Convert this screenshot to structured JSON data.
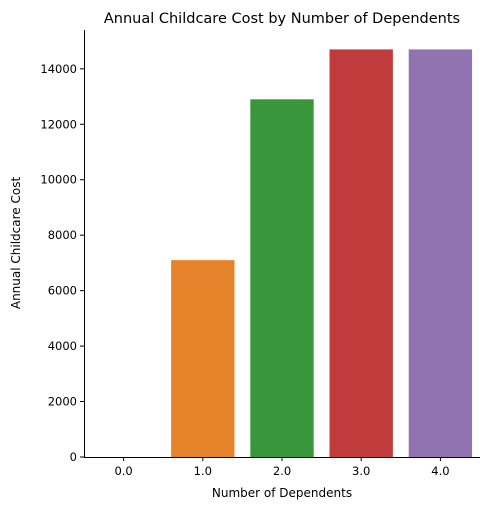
{
  "chart_data": {
    "type": "bar",
    "title": "Annual Childcare Cost by Number of Dependents",
    "xlabel": "Number of Dependents",
    "ylabel": "Annual Childcare Cost",
    "categories": [
      "0.0",
      "1.0",
      "2.0",
      "3.0",
      "4.0"
    ],
    "values": [
      0,
      7100,
      12900,
      14700,
      14700
    ],
    "colors": [
      "#1f77b4",
      "#e6832a",
      "#3a963a",
      "#c03b3b",
      "#9273b1"
    ],
    "ylim": [
      0,
      15400
    ],
    "yticks": [
      0,
      2000,
      4000,
      6000,
      8000,
      10000,
      12000,
      14000
    ],
    "grid": false,
    "legend": "none"
  }
}
